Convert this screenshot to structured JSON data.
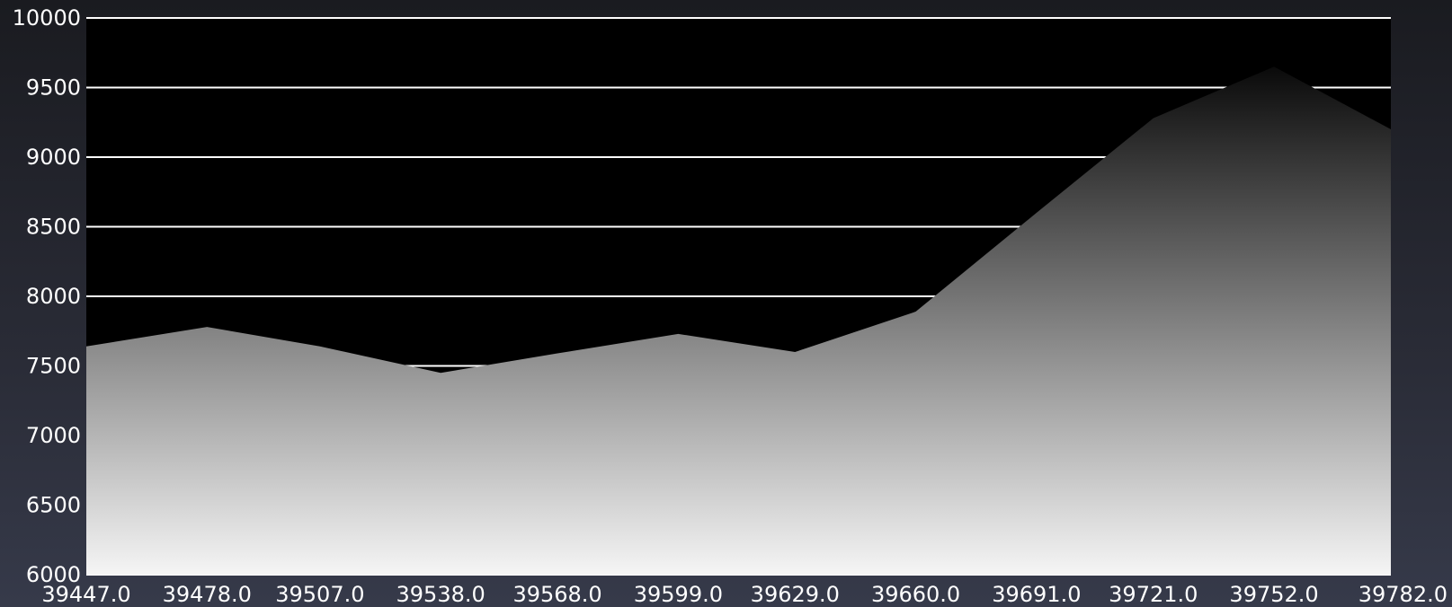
{
  "chart_data": {
    "type": "area",
    "x": [
      39447,
      39478,
      39507,
      39538,
      39568,
      39599,
      39629,
      39660,
      39691,
      39721,
      39752,
      39782
    ],
    "x_tick_labels": [
      "39447.0",
      "39478.0",
      "39507.0",
      "39538.0",
      "39568.0",
      "39599.0",
      "39629.0",
      "39660.0",
      "39691.0",
      "39721.0",
      "39752.0",
      "39782.0"
    ],
    "series": [
      {
        "values": [
          7640,
          7780,
          7640,
          7450,
          7590,
          7730,
          7600,
          7890,
          8600,
          9280,
          9650,
          9200
        ]
      }
    ],
    "y_ticks": [
      6000,
      6500,
      7000,
      7500,
      8000,
      8500,
      9000,
      9500,
      10000
    ],
    "y_tick_labels": [
      "6000",
      "6500",
      "7000",
      "7500",
      "8000",
      "8500",
      "9000",
      "9500",
      "10000"
    ],
    "xlim": [
      39447,
      39782
    ],
    "ylim": [
      6000,
      10000
    ],
    "grid": true,
    "title": "",
    "xlabel": "",
    "ylabel": "",
    "colors": {
      "plot_background": "#000000",
      "grid": "#ffffff",
      "area_top": "#0a0a0a",
      "area_bottom": "#f5f5f5",
      "text": "#ffffff"
    }
  }
}
